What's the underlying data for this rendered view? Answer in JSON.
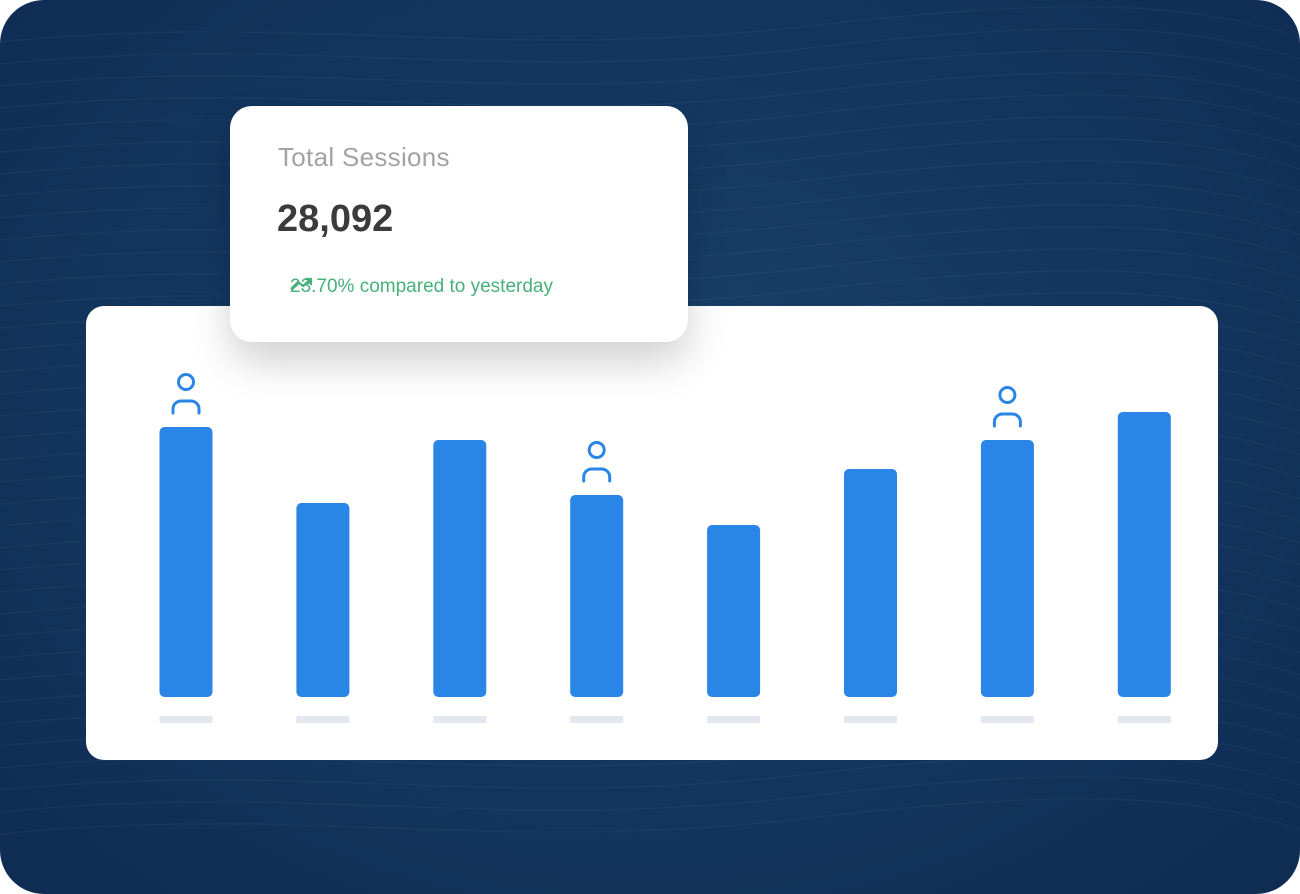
{
  "stat_card": {
    "title": "Total Sessions",
    "value": "28,092",
    "trend_icon": "trending-up-icon",
    "trend_text": "23.70% compared to yesterday",
    "trend_color": "#48b07a"
  },
  "chart_data": {
    "type": "bar",
    "values": [
      270,
      194,
      257,
      202,
      172,
      228,
      257,
      285
    ],
    "user_icon_on_bars": [
      0,
      3,
      6
    ],
    "ylim": [
      0,
      300
    ],
    "bar_color": "#2a86e6",
    "label_placeholder_color": "#e3e7ef",
    "grid": false
  },
  "colors": {
    "background": "#133660",
    "card": "#ffffff"
  }
}
